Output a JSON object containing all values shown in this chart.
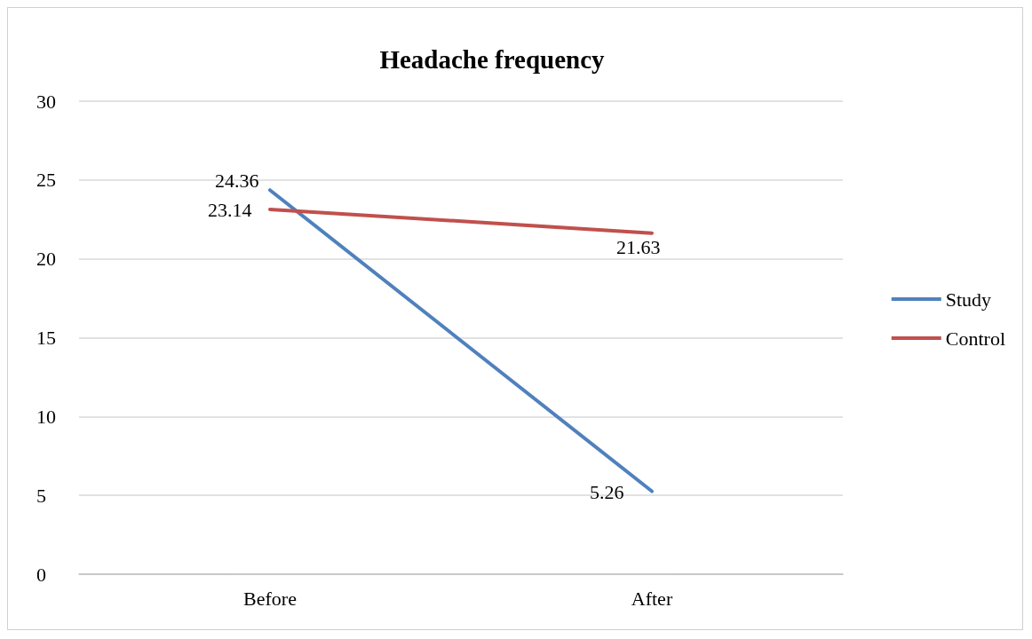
{
  "chart_data": {
    "type": "line",
    "title": "Headache frequency",
    "categories": [
      "Before",
      "After"
    ],
    "series": [
      {
        "name": "Study",
        "color": "#4f81bd",
        "values": [
          24.36,
          5.26
        ]
      },
      {
        "name": "Control",
        "color": "#c0504d",
        "values": [
          23.14,
          21.63
        ]
      }
    ],
    "ylim": [
      0,
      30
    ],
    "yticks": [
      0,
      5,
      10,
      15,
      20,
      25,
      30
    ],
    "grid": "y",
    "legend": "right",
    "marker": "none",
    "line_style": "solid",
    "data_labels": true
  }
}
